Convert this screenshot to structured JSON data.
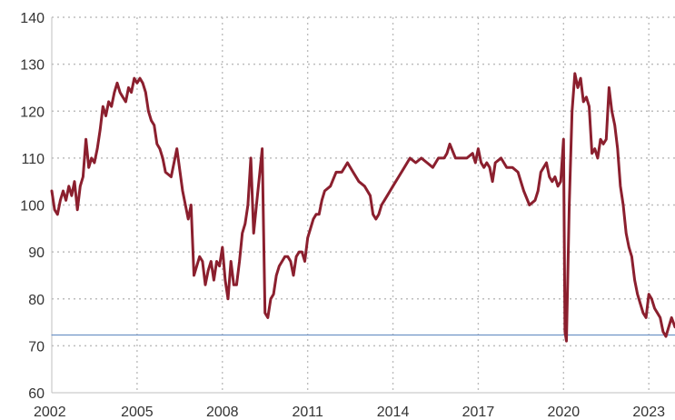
{
  "chart_data": {
    "type": "line",
    "title": "",
    "xlabel": "",
    "ylabel": "",
    "xlim": [
      2002.0,
      2023.92
    ],
    "ylim": [
      60,
      140
    ],
    "x_ticks": [
      2002,
      2005,
      2008,
      2011,
      2014,
      2017,
      2020,
      2023
    ],
    "x_tick_labels": [
      "2002",
      "2005",
      "2008",
      "2011",
      "2014",
      "2017",
      "2020",
      "2023"
    ],
    "y_ticks": [
      60,
      70,
      80,
      90,
      100,
      110,
      120,
      130,
      140
    ],
    "y_tick_labels": [
      "60",
      "70",
      "80",
      "90",
      "100",
      "110",
      "120",
      "130",
      "140"
    ],
    "grid": "dotted vertical and horizontal",
    "legend": "none",
    "colors": {
      "series": "#8b1f2e",
      "reference": "#6f93c6",
      "grid": "#bdbdbd",
      "text": "#333333"
    },
    "series": [
      {
        "color": "#8b1f2e",
        "x": [
          2002.0,
          2002.1,
          2002.2,
          2002.3,
          2002.4,
          2002.5,
          2002.6,
          2002.7,
          2002.8,
          2002.9,
          2003.0,
          2003.1,
          2003.2,
          2003.3,
          2003.4,
          2003.5,
          2003.6,
          2003.7,
          2003.8,
          2003.9,
          2004.0,
          2004.1,
          2004.2,
          2004.3,
          2004.4,
          2004.5,
          2004.6,
          2004.7,
          2004.8,
          2004.9,
          2005.0,
          2005.1,
          2005.2,
          2005.3,
          2005.4,
          2005.5,
          2005.6,
          2005.7,
          2005.8,
          2005.9,
          2006.0,
          2006.2,
          2006.4,
          2006.6,
          2006.7,
          2006.8,
          2006.9,
          2007.0,
          2007.1,
          2007.2,
          2007.3,
          2007.4,
          2007.5,
          2007.6,
          2007.7,
          2007.8,
          2007.9,
          2008.0,
          2008.1,
          2008.2,
          2008.3,
          2008.4,
          2008.5,
          2008.6,
          2008.7,
          2008.8,
          2008.9,
          2009.0,
          2009.1,
          2009.2,
          2009.3,
          2009.4,
          2009.5,
          2009.6,
          2009.7,
          2009.8,
          2009.9,
          2010.0,
          2010.1,
          2010.2,
          2010.3,
          2010.4,
          2010.5,
          2010.6,
          2010.7,
          2010.8,
          2010.9,
          2011.0,
          2011.1,
          2011.2,
          2011.3,
          2011.4,
          2011.5,
          2011.6,
          2011.8,
          2012.0,
          2012.2,
          2012.4,
          2012.6,
          2012.8,
          2013.0,
          2013.2,
          2013.3,
          2013.4,
          2013.5,
          2013.6,
          2013.7,
          2013.8,
          2013.9,
          2014.0,
          2014.2,
          2014.4,
          2014.6,
          2014.8,
          2015.0,
          2015.2,
          2015.4,
          2015.6,
          2015.8,
          2015.9,
          2016.0,
          2016.2,
          2016.4,
          2016.6,
          2016.8,
          2016.9,
          2017.0,
          2017.1,
          2017.2,
          2017.3,
          2017.4,
          2017.5,
          2017.6,
          2017.8,
          2018.0,
          2018.2,
          2018.4,
          2018.6,
          2018.8,
          2019.0,
          2019.1,
          2019.2,
          2019.3,
          2019.4,
          2019.5,
          2019.6,
          2019.7,
          2019.8,
          2019.9,
          2020.0,
          2020.05,
          2020.1,
          2020.2,
          2020.3,
          2020.4,
          2020.5,
          2020.6,
          2020.7,
          2020.8,
          2020.9,
          2021.0,
          2021.1,
          2021.2,
          2021.3,
          2021.4,
          2021.5,
          2021.6,
          2021.7,
          2021.8,
          2021.9,
          2022.0,
          2022.1,
          2022.2,
          2022.3,
          2022.4,
          2022.5,
          2022.6,
          2022.7,
          2022.8,
          2022.9,
          2023.0,
          2023.1,
          2023.2,
          2023.3,
          2023.4,
          2023.5,
          2023.6,
          2023.7,
          2023.8,
          2023.92
        ],
        "values": [
          103,
          99,
          98,
          101,
          103,
          101,
          104,
          102,
          105,
          99,
          104,
          106,
          114,
          108,
          110,
          109,
          112,
          116,
          121,
          119,
          122,
          121,
          124,
          126,
          124,
          123,
          122,
          125,
          124,
          127,
          126,
          127,
          126,
          124,
          120,
          118,
          117,
          113,
          112,
          110,
          107,
          106,
          112,
          103,
          100,
          97,
          100,
          85,
          87,
          89,
          88,
          83,
          86,
          88,
          84,
          88,
          87,
          91,
          84,
          80,
          88,
          83,
          83,
          88,
          94,
          96,
          100,
          110,
          94,
          100,
          106,
          112,
          77,
          76,
          80,
          81,
          85,
          87,
          88,
          89,
          89,
          88,
          85,
          89,
          90,
          90,
          88,
          93,
          95,
          97,
          98,
          98,
          101,
          103,
          104,
          107,
          107,
          109,
          107,
          105,
          104,
          102,
          98,
          97,
          98,
          100,
          101,
          102,
          103,
          104,
          106,
          108,
          110,
          109,
          110,
          109,
          108,
          110,
          110,
          111,
          113,
          110,
          110,
          110,
          111,
          109,
          112,
          109,
          108,
          109,
          108,
          105,
          109,
          110,
          108,
          108,
          107,
          103,
          100,
          101,
          103,
          107,
          108,
          109,
          106,
          105,
          106,
          104,
          105,
          114,
          73,
          71,
          100,
          120,
          128,
          125,
          127,
          122,
          123,
          121,
          111,
          112,
          110,
          114,
          113,
          114,
          125,
          120,
          117,
          112,
          104,
          100,
          94,
          91,
          89,
          84,
          81,
          79,
          77,
          76,
          81,
          80,
          78,
          77,
          76,
          73,
          72,
          74,
          76,
          74
        ]
      },
      {
        "color": "#6f93c6",
        "x": [
          2002.0,
          2023.92
        ],
        "values": [
          72.3,
          72.3
        ]
      }
    ]
  }
}
